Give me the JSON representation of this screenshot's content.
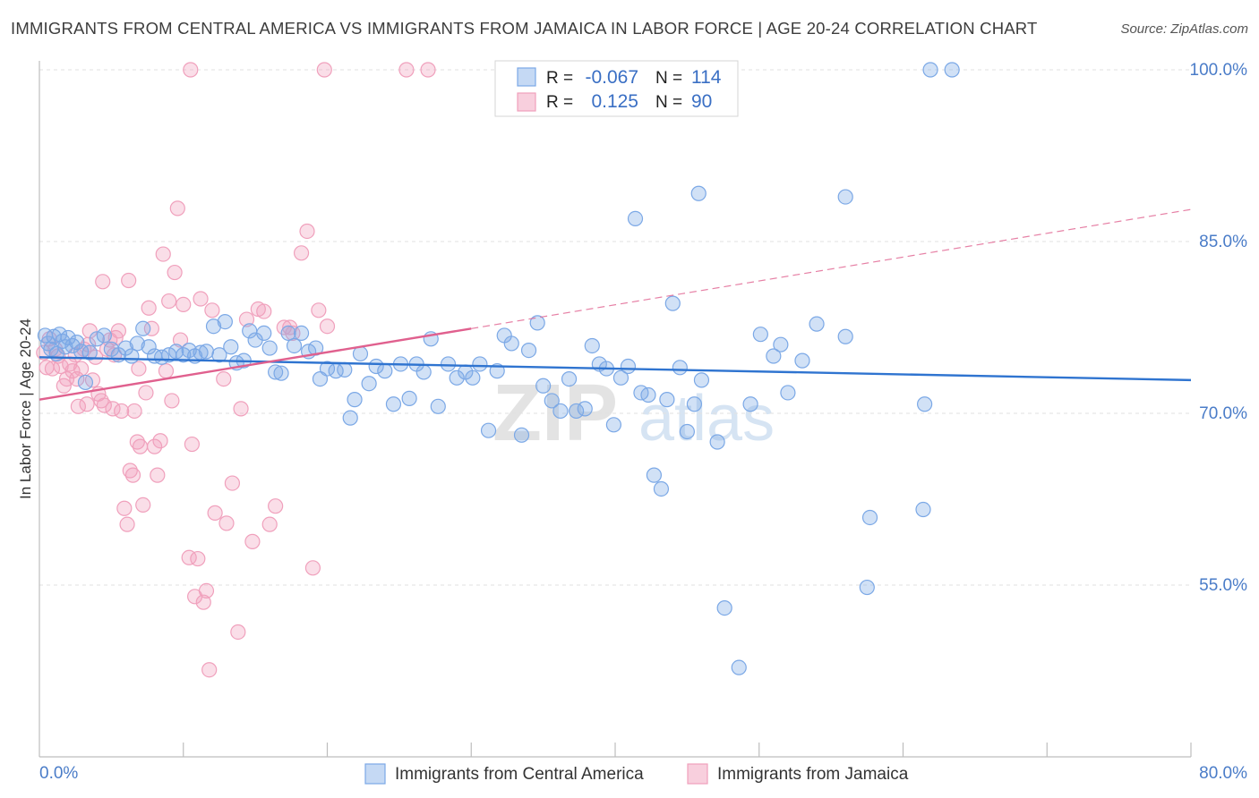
{
  "header": {
    "title": "IMMIGRANTS FROM CENTRAL AMERICA VS IMMIGRANTS FROM JAMAICA IN LABOR FORCE | AGE 20-24 CORRELATION CHART",
    "source": "Source: ZipAtlas.com"
  },
  "watermark": {
    "zip": "ZIP",
    "atlas": "atlas"
  },
  "legend_box": {
    "rows": [
      {
        "r_label": "R =",
        "r_value": "-0.067",
        "n_label": "N =",
        "n_value": "114",
        "color": "#7ba8e6"
      },
      {
        "r_label": "R =",
        "r_value": "0.125",
        "n_label": "N =",
        "n_value": "90",
        "color": "#f0a0bc"
      }
    ]
  },
  "chart_data": {
    "type": "scatter",
    "title": "IMMIGRANTS FROM CENTRAL AMERICA VS IMMIGRANTS FROM JAMAICA IN LABOR FORCE | AGE 20-24 CORRELATION CHART",
    "xlabel": "",
    "ylabel": "In Labor Force | Age 20-24",
    "xlim": [
      0,
      80
    ],
    "ylim": [
      40,
      100
    ],
    "x_tick_labels": [
      "0.0%",
      "80.0%"
    ],
    "y_ticks": [
      55,
      70,
      85,
      100
    ],
    "y_tick_labels": [
      "55.0%",
      "70.0%",
      "85.0%",
      "100.0%"
    ],
    "grid": true,
    "legend_position": "bottom-center",
    "series": [
      {
        "name": "Immigrants from Central America",
        "color": "#7ba8e6",
        "line_color": "#2f74d0",
        "trend": {
          "x": [
            0,
            80
          ],
          "y": [
            74.9,
            72.9
          ]
        },
        "points": [
          [
            0.4,
            76.8
          ],
          [
            0.6,
            76.1
          ],
          [
            0.8,
            75.6
          ],
          [
            1.0,
            76.7
          ],
          [
            1.2,
            75.2
          ],
          [
            1.4,
            76.9
          ],
          [
            1.6,
            76.3
          ],
          [
            1.8,
            75.8
          ],
          [
            2.0,
            76.6
          ],
          [
            2.3,
            75.9
          ],
          [
            2.6,
            76.2
          ],
          [
            2.9,
            75.4
          ],
          [
            3.2,
            72.7
          ],
          [
            3.5,
            75.3
          ],
          [
            4.0,
            76.5
          ],
          [
            4.5,
            76.8
          ],
          [
            5.0,
            75.6
          ],
          [
            5.5,
            75.1
          ],
          [
            6.0,
            75.7
          ],
          [
            6.4,
            75.0
          ],
          [
            6.8,
            76.1
          ],
          [
            7.2,
            77.4
          ],
          [
            7.6,
            75.8
          ],
          [
            8.0,
            75.0
          ],
          [
            8.5,
            74.9
          ],
          [
            9.0,
            75.1
          ],
          [
            9.5,
            75.4
          ],
          [
            10.0,
            75.1
          ],
          [
            10.4,
            75.5
          ],
          [
            10.8,
            75.0
          ],
          [
            11.2,
            75.3
          ],
          [
            11.6,
            75.4
          ],
          [
            12.1,
            77.6
          ],
          [
            12.5,
            75.1
          ],
          [
            12.9,
            78.0
          ],
          [
            13.3,
            75.8
          ],
          [
            13.7,
            74.4
          ],
          [
            14.2,
            74.6
          ],
          [
            14.6,
            77.2
          ],
          [
            15.0,
            76.4
          ],
          [
            15.6,
            77.0
          ],
          [
            16.0,
            75.7
          ],
          [
            16.4,
            73.6
          ],
          [
            16.8,
            73.5
          ],
          [
            17.3,
            77.0
          ],
          [
            17.7,
            75.9
          ],
          [
            18.2,
            77.0
          ],
          [
            18.7,
            75.4
          ],
          [
            19.2,
            75.7
          ],
          [
            19.5,
            73.0
          ],
          [
            20.0,
            73.9
          ],
          [
            20.6,
            73.7
          ],
          [
            21.2,
            73.8
          ],
          [
            21.6,
            69.6
          ],
          [
            21.9,
            71.2
          ],
          [
            22.3,
            75.2
          ],
          [
            22.9,
            72.6
          ],
          [
            23.4,
            74.1
          ],
          [
            24.0,
            73.7
          ],
          [
            24.6,
            70.8
          ],
          [
            25.1,
            74.3
          ],
          [
            25.7,
            71.3
          ],
          [
            26.2,
            74.3
          ],
          [
            26.7,
            73.6
          ],
          [
            27.2,
            76.5
          ],
          [
            27.7,
            70.6
          ],
          [
            28.4,
            74.3
          ],
          [
            29.0,
            73.1
          ],
          [
            29.6,
            73.6
          ],
          [
            30.1,
            73.1
          ],
          [
            30.6,
            74.3
          ],
          [
            31.2,
            68.5
          ],
          [
            31.8,
            73.7
          ],
          [
            32.3,
            76.8
          ],
          [
            32.8,
            76.1
          ],
          [
            33.5,
            68.1
          ],
          [
            34.0,
            75.5
          ],
          [
            34.6,
            77.9
          ],
          [
            35.0,
            72.4
          ],
          [
            35.6,
            71.1
          ],
          [
            36.2,
            70.2
          ],
          [
            36.8,
            73.0
          ],
          [
            37.3,
            70.2
          ],
          [
            37.9,
            70.4
          ],
          [
            38.4,
            75.9
          ],
          [
            38.9,
            74.3
          ],
          [
            39.4,
            73.9
          ],
          [
            39.9,
            69.0
          ],
          [
            40.4,
            73.1
          ],
          [
            40.9,
            74.1
          ],
          [
            41.4,
            87.0
          ],
          [
            41.8,
            71.8
          ],
          [
            42.3,
            71.6
          ],
          [
            42.7,
            64.6
          ],
          [
            43.2,
            63.4
          ],
          [
            43.6,
            71.2
          ],
          [
            44.0,
            79.6
          ],
          [
            44.5,
            74.0
          ],
          [
            45.0,
            68.4
          ],
          [
            45.5,
            70.8
          ],
          [
            46.0,
            72.9
          ],
          [
            47.1,
            67.5
          ],
          [
            47.6,
            53.0
          ],
          [
            48.6,
            47.8
          ],
          [
            49.4,
            70.8
          ],
          [
            50.1,
            76.9
          ],
          [
            51.0,
            75.0
          ],
          [
            51.5,
            76.0
          ],
          [
            52.0,
            71.8
          ],
          [
            53.0,
            74.6
          ],
          [
            54.0,
            77.8
          ],
          [
            56.0,
            76.7
          ],
          [
            57.7,
            60.9
          ],
          [
            57.5,
            54.8
          ],
          [
            61.5,
            70.8
          ],
          [
            61.4,
            61.6
          ],
          [
            56.0,
            88.9
          ],
          [
            45.8,
            89.2
          ]
        ],
        "top_edge_points": [
          [
            48.0,
            100
          ],
          [
            63.4,
            100
          ],
          [
            61.9,
            100
          ]
        ]
      },
      {
        "name": "Immigrants from Jamaica",
        "color": "#f0a0bc",
        "line_color": "#e0608e",
        "trend": {
          "x": [
            0,
            30
          ],
          "y": [
            71.2,
            77.4
          ]
        },
        "trend_extension": {
          "x": [
            30,
            80
          ],
          "y": [
            77.4,
            87.8
          ]
        },
        "points": [
          [
            0.3,
            75.3
          ],
          [
            0.5,
            74.0
          ],
          [
            0.7,
            76.5
          ],
          [
            0.9,
            73.9
          ],
          [
            1.1,
            75.6
          ],
          [
            1.3,
            75.0
          ],
          [
            1.5,
            74.1
          ],
          [
            1.7,
            72.4
          ],
          [
            1.9,
            73.0
          ],
          [
            2.1,
            74.3
          ],
          [
            2.3,
            73.7
          ],
          [
            2.5,
            75.1
          ],
          [
            2.7,
            70.6
          ],
          [
            2.9,
            73.9
          ],
          [
            3.1,
            75.6
          ],
          [
            3.3,
            70.8
          ],
          [
            3.5,
            77.2
          ],
          [
            3.7,
            72.9
          ],
          [
            3.9,
            74.9
          ],
          [
            4.1,
            71.7
          ],
          [
            4.3,
            71.1
          ],
          [
            4.5,
            70.7
          ],
          [
            4.7,
            75.6
          ],
          [
            4.9,
            76.4
          ],
          [
            5.1,
            70.4
          ],
          [
            5.3,
            76.6
          ],
          [
            5.5,
            77.2
          ],
          [
            5.7,
            70.2
          ],
          [
            5.9,
            61.7
          ],
          [
            6.1,
            60.3
          ],
          [
            6.3,
            65.0
          ],
          [
            6.5,
            64.6
          ],
          [
            6.6,
            70.2
          ],
          [
            6.8,
            67.5
          ],
          [
            7.0,
            67.1
          ],
          [
            7.2,
            62.0
          ],
          [
            7.4,
            71.8
          ],
          [
            7.6,
            79.2
          ],
          [
            7.8,
            77.4
          ],
          [
            8.0,
            67.1
          ],
          [
            8.2,
            64.6
          ],
          [
            8.4,
            67.6
          ],
          [
            8.6,
            83.9
          ],
          [
            8.8,
            73.7
          ],
          [
            9.0,
            79.8
          ],
          [
            9.2,
            71.1
          ],
          [
            9.4,
            82.3
          ],
          [
            9.6,
            87.9
          ],
          [
            9.8,
            76.4
          ],
          [
            10.0,
            79.5
          ],
          [
            10.4,
            57.4
          ],
          [
            10.6,
            67.3
          ],
          [
            10.8,
            54.0
          ],
          [
            11.0,
            57.3
          ],
          [
            11.2,
            80.0
          ],
          [
            11.4,
            53.5
          ],
          [
            11.6,
            54.5
          ],
          [
            11.8,
            47.6
          ],
          [
            12.0,
            79.0
          ],
          [
            12.2,
            61.3
          ],
          [
            13.0,
            60.4
          ],
          [
            13.4,
            63.9
          ],
          [
            13.8,
            50.9
          ],
          [
            14.0,
            70.4
          ],
          [
            14.4,
            78.2
          ],
          [
            14.8,
            58.8
          ],
          [
            15.2,
            79.1
          ],
          [
            15.6,
            78.9
          ],
          [
            16.0,
            60.3
          ],
          [
            16.4,
            61.9
          ],
          [
            17.0,
            77.5
          ],
          [
            17.6,
            77.0
          ],
          [
            18.2,
            84.0
          ],
          [
            18.6,
            85.9
          ],
          [
            19.0,
            56.5
          ],
          [
            19.4,
            79.0
          ],
          [
            20.0,
            77.6
          ],
          [
            4.4,
            81.5
          ],
          [
            6.2,
            81.6
          ],
          [
            17.4,
            77.5
          ],
          [
            6.9,
            73.9
          ],
          [
            2.6,
            73.0
          ],
          [
            12.8,
            73.0
          ],
          [
            3.4,
            76.0
          ],
          [
            5.2,
            75.1
          ]
        ],
        "top_edge_points": [
          [
            10.5,
            100
          ],
          [
            19.8,
            100
          ],
          [
            25.5,
            100
          ],
          [
            27.0,
            100
          ]
        ]
      }
    ]
  }
}
